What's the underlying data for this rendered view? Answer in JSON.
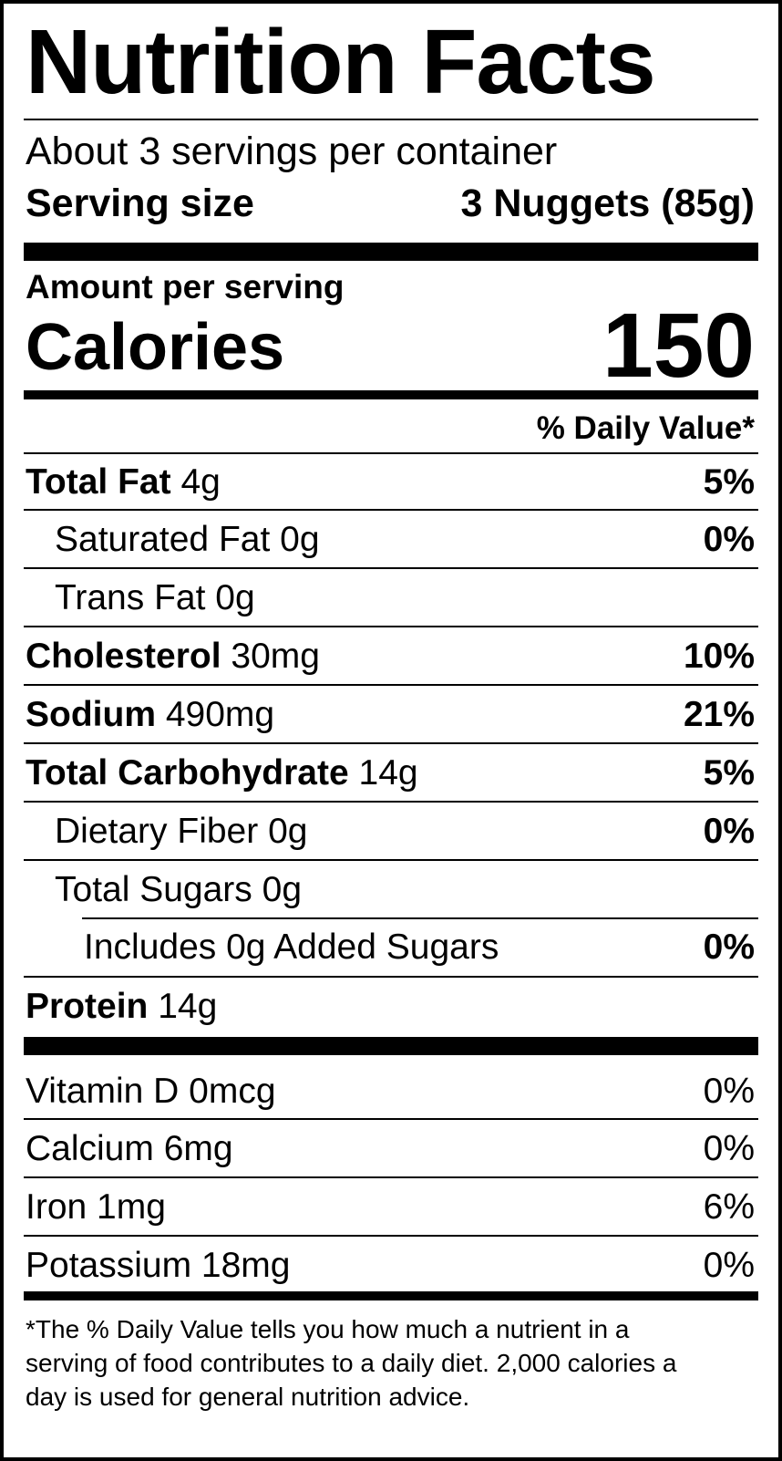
{
  "title": "Nutrition Facts",
  "servings": "About 3 servings per container",
  "serving_size": {
    "label": "Serving size",
    "value": "3 Nuggets (85g)"
  },
  "amount_per_serving": "Amount per serving",
  "calories": {
    "label": "Calories",
    "value": "150"
  },
  "daily_value_header": "% Daily Value*",
  "nutrients": [
    {
      "name": "Total Fat",
      "amount": "4g",
      "dv": "5%"
    },
    {
      "name": "Saturated Fat",
      "amount": "0g",
      "dv": "0%"
    },
    {
      "name": "Trans Fat",
      "amount": "0g",
      "dv": ""
    },
    {
      "name": "Cholesterol",
      "amount": "30mg",
      "dv": "10%"
    },
    {
      "name": "Sodium",
      "amount": "490mg",
      "dv": "21%"
    },
    {
      "name": "Total Carbohydrate",
      "amount": "14g",
      "dv": "5%"
    },
    {
      "name": "Dietary Fiber",
      "amount": "0g",
      "dv": "0%"
    },
    {
      "name": "Total Sugars",
      "amount": "0g",
      "dv": ""
    },
    {
      "name": "Includes 0g Added Sugars",
      "amount": "",
      "dv": "0%"
    },
    {
      "name": "Protein",
      "amount": "14g",
      "dv": ""
    }
  ],
  "vitamins": [
    {
      "text": "Vitamin D 0mcg",
      "dv": "0%"
    },
    {
      "text": "Calcium 6mg",
      "dv": "0%"
    },
    {
      "text": "Iron 1mg",
      "dv": "6%"
    },
    {
      "text": "Potassium 18mg",
      "dv": "0%"
    }
  ],
  "footnote": {
    "line1": "*The % Daily Value tells you how much a nutrient in a",
    "line2": "serving of food contributes to a daily diet. 2,000 calories a",
    "line3": "day is used for general nutrition advice."
  }
}
